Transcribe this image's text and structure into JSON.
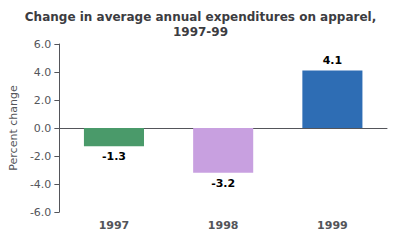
{
  "chart_data": {
    "type": "bar",
    "title": "Change in average annual expenditures on apparel,\n1997-99",
    "categories": [
      "1997",
      "1998",
      "1999"
    ],
    "values": [
      -1.3,
      -3.2,
      4.1
    ],
    "colors": [
      "#4a9a6a",
      "#c8a0e0",
      "#2e6db4"
    ],
    "data_labels": true,
    "ylabel": "Percent change",
    "ylim": [
      -6.0,
      6.0
    ],
    "yticks": [
      {
        "value": -6.0,
        "label": "-6.0"
      },
      {
        "value": -4.0,
        "label": "-4.0"
      },
      {
        "value": -2.0,
        "label": "-2.0"
      },
      {
        "value": 0.0,
        "label": "0.0"
      },
      {
        "value": 2.0,
        "label": "2.0"
      },
      {
        "value": 4.0,
        "label": "4.0"
      },
      {
        "value": 6.0,
        "label": "6.0"
      }
    ],
    "grid": false
  }
}
